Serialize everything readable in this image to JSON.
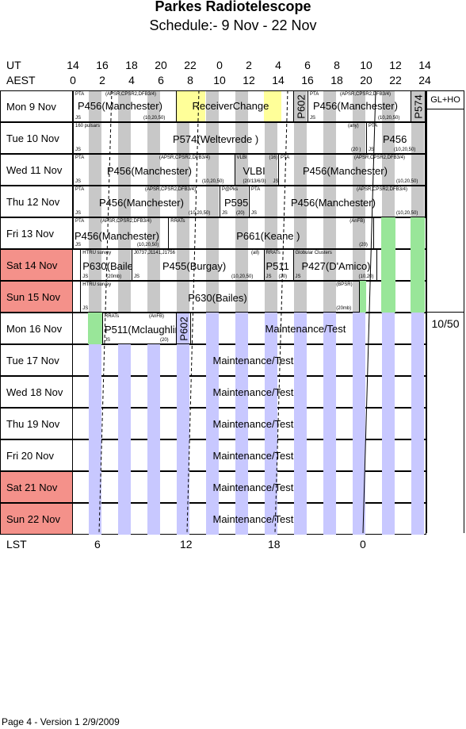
{
  "title": "Parkes Radiotelescope",
  "subtitle": "Schedule:- 9  Nov - 22 Nov",
  "time_axis": {
    "ut_label": "UT",
    "aest_label": "AEST",
    "ut": [
      "14",
      "16",
      "18",
      "20",
      "22",
      "0",
      "2",
      "4",
      "6",
      "8",
      "10",
      "12",
      "14"
    ],
    "aest": [
      "0",
      "2",
      "4",
      "6",
      "8",
      "10",
      "12",
      "14",
      "16",
      "18",
      "20",
      "22",
      "24"
    ]
  },
  "lst": {
    "label": "LST",
    "ticks": [
      "6",
      "12",
      "18",
      "0"
    ]
  },
  "side": {
    "top_label": "GL+HO",
    "mid_label": "10/50"
  },
  "days": [
    {
      "day": "Mon",
      "date": "9  Nov",
      "weekend": false
    },
    {
      "day": "Tue",
      "date": "10 Nov",
      "weekend": false
    },
    {
      "day": "Wed",
      "date": "11 Nov",
      "weekend": false
    },
    {
      "day": "Thu",
      "date": "12 Nov",
      "weekend": false
    },
    {
      "day": "Fri",
      "date": "13 Nov",
      "weekend": false
    },
    {
      "day": "Sat",
      "date": "14 Nov",
      "weekend": true
    },
    {
      "day": "Sun",
      "date": "15 Nov",
      "weekend": true
    },
    {
      "day": "Mon",
      "date": "16 Nov",
      "weekend": false
    },
    {
      "day": "Tue",
      "date": "17 Nov",
      "weekend": false
    },
    {
      "day": "Wed",
      "date": "18 Nov",
      "weekend": false
    },
    {
      "day": "Thu",
      "date": "19 Nov",
      "weekend": false
    },
    {
      "day": "Fri",
      "date": "20 Nov",
      "weekend": false
    },
    {
      "day": "Sat",
      "date": "21 Nov",
      "weekend": true
    },
    {
      "day": "Sun",
      "date": "22 Nov",
      "weekend": true
    }
  ],
  "entries": {
    "mon9": {
      "a_top": "PTA",
      "a_topr": "(APSR,CPSR2,DFB3/4)",
      "a_name": "P456(Manchester)",
      "a_js": "JS",
      "a_bot": "(10,20,50)",
      "rc": "ReceiverChange",
      "p602": "P602",
      "b_top": "PTA",
      "b_topr": "(APSR,CPSR2,DFB3/4)",
      "b_name": "P456(Manchester)",
      "b_js": "JS",
      "b_bot": "(10,20,50)",
      "p574": "P574"
    },
    "tue10": {
      "a_top": "160 pulsars",
      "a_name": "P574(Weltevrede )",
      "a_js": "JS",
      "a_any": "(any)",
      "a_bot": "(20 )",
      "b_top": "PTA",
      "b_name": "P456",
      "b_js": "JS",
      "b_bot": "(10,20,50)"
    },
    "wed11": {
      "a_top": "PTA",
      "a_topr": "(APSR,CPSR2,DFB3/4)",
      "a_name": "P456(Manchester)",
      "a_js": "JS",
      "a_bot": "(10,20,50)",
      "v_top": "VLBI",
      "v_topr": "(16)",
      "v_name": "VLBI",
      "v_bot": "(20/13/6/3)",
      "v_js": "JS",
      "b_top": "PTA",
      "b_topr": "(APSR,CPSR2,DFB3/4)",
      "b_name": "P456(Manchester)",
      "b_bot": "(10,20,50)"
    },
    "thu12": {
      "a_top": "PTA",
      "a_topr": "(APSR,CPSR2,DFB3/4)",
      "a_name": "P456(Manchester)",
      "a_js": "JS",
      "a_bot": "(10,20,50)",
      "p_top": "P@Pks",
      "p_name": "P595",
      "p_js": "JS",
      "p_bot": "(20)",
      "b_top": "PTA",
      "b_topr": "(APSR,CPSR2,DFB3/4)",
      "b_js": "JS",
      "b_name": "P456(Manchester)",
      "b_bot": "(10,20,50)"
    },
    "fri13": {
      "a_top": "PTA",
      "a_topr": "(APSR,CPSR2,DFB3/4)",
      "a_name": "P456(Manchester)",
      "a_js": "JS",
      "a_bot": "(10,20,50)",
      "b_top": "RRATs",
      "b_topr": "(AnFB)",
      "b_name": "P661(Keane )",
      "b_bot": "(20)"
    },
    "sat14": {
      "a_top": "HTRU survey",
      "a_name": "P630(Bailes)",
      "a_js": "JS",
      "a_bot": "(20mb)",
      "b_top": "J0737,J1141,J1756",
      "b_topr": "(all)",
      "b_name": "P455(Burgay)",
      "b_js": "JS",
      "b_bot": "(10,20,50)",
      "c_top": "RRATs",
      "c_name": "P511",
      "c_js": "JS",
      "c_bot": "(20)",
      "d_top": "Globular Clusters",
      "d_name": "P427(D'Amico)",
      "d_js": "JS",
      "d_bot": "(10,20)"
    },
    "sun15": {
      "a_top": "HTRU survey",
      "a_topr": "(BPSR)",
      "a_name": "P630(Bailes)",
      "a_js": "JS",
      "a_bot": "(20mb)"
    },
    "mon16": {
      "a_top": "RRATs",
      "a_topr": "(AnFB)",
      "a_name": "P511(Mclaughlin)",
      "a_js": "JS",
      "a_bot": "(20)",
      "p602": "P602",
      "mt": "Maintenance/Test"
    },
    "mt_label": "Maintenance/Test"
  },
  "footer": "Page 4 - Version 1  2/9/2009",
  "colors": {
    "weekend": "#f4918a",
    "stripe_gray": "#c8c8c8",
    "stripe_blue": "#c8c8ff",
    "receiver": "#ffff99",
    "green": "#99e699"
  }
}
